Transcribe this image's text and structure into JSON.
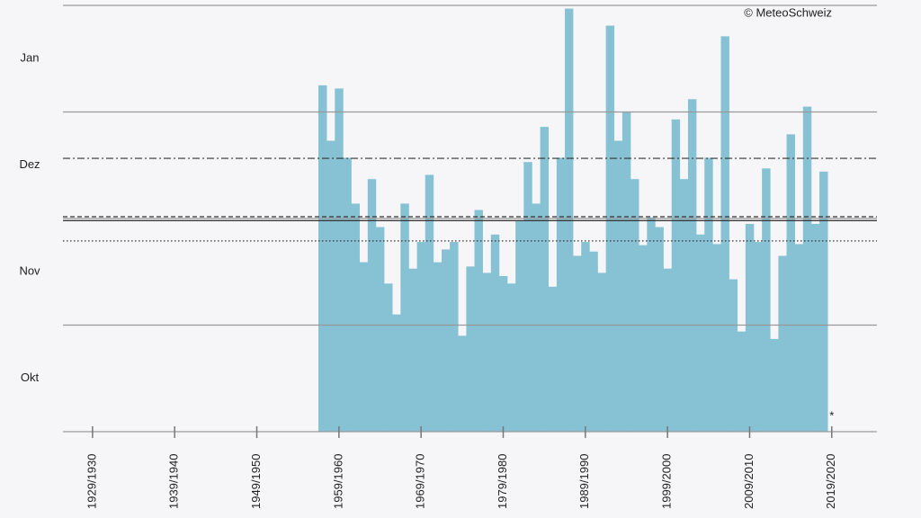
{
  "chart_data": {
    "type": "bar",
    "annotations": [
      "© MeteoSchweiz",
      "*"
    ],
    "x": [
      1957,
      1958,
      1959,
      1960,
      1961,
      1962,
      1963,
      1964,
      1965,
      1966,
      1967,
      1968,
      1969,
      1970,
      1971,
      1972,
      1973,
      1974,
      1975,
      1976,
      1977,
      1978,
      1979,
      1980,
      1981,
      1982,
      1983,
      1984,
      1985,
      1986,
      1987,
      1988,
      1989,
      1990,
      1991,
      1992,
      1993,
      1994,
      1995,
      1996,
      1997,
      1998,
      1999,
      2000,
      2001,
      2002,
      2003,
      2004,
      2005,
      2006,
      2007,
      2008,
      2009,
      2010,
      2011,
      2012,
      2013,
      2014,
      2015,
      2016,
      2017,
      2018
    ],
    "values": [
      3.25,
      2.73,
      3.22,
      2.57,
      2.14,
      1.59,
      2.37,
      1.92,
      1.39,
      1.1,
      2.14,
      1.53,
      1.78,
      2.41,
      1.59,
      1.71,
      1.78,
      0.9,
      1.55,
      2.08,
      1.49,
      1.85,
      1.46,
      1.39,
      1.98,
      2.53,
      2.14,
      2.86,
      1.36,
      2.57,
      3.97,
      1.65,
      1.78,
      1.69,
      1.49,
      3.81,
      2.73,
      3.0,
      2.37,
      1.75,
      2.01,
      1.92,
      1.53,
      2.93,
      2.37,
      3.12,
      1.85,
      2.57,
      1.76,
      3.71,
      1.43,
      0.94,
      1.95,
      1.78,
      2.47,
      0.87,
      1.65,
      2.79,
      1.76,
      3.05,
      1.95,
      2.44
    ],
    "color": "#86c2d4",
    "xlim": [
      1925.4,
      2024.5
    ],
    "xticks": [
      {
        "value": 1929,
        "label": "1929/1930"
      },
      {
        "value": 1939,
        "label": "1939/1940"
      },
      {
        "value": 1949,
        "label": "1949/1950"
      },
      {
        "value": 1959,
        "label": "1959/1960"
      },
      {
        "value": 1969,
        "label": "1969/1970"
      },
      {
        "value": 1979,
        "label": "1979/1980"
      },
      {
        "value": 1989,
        "label": "1989/1990"
      },
      {
        "value": 1999,
        "label": "1999/2000"
      },
      {
        "value": 2009,
        "label": "2009/2010"
      },
      {
        "value": 2019,
        "label": "2019/2020"
      }
    ],
    "ylim": [
      0,
      4
    ],
    "yticks": [
      {
        "value": 0.5,
        "label": "Okt"
      },
      {
        "value": 1.5,
        "label": "Nov"
      },
      {
        "value": 2.5,
        "label": "Dez"
      },
      {
        "value": 3.5,
        "label": "Jan"
      }
    ],
    "grid_lines": [
      0,
      1,
      2,
      3,
      4
    ],
    "reference_lines": [
      {
        "value": 2.565,
        "style": "dashdot"
      },
      {
        "value": 2.017,
        "style": "dashed"
      },
      {
        "value": 1.98,
        "style": "solid"
      },
      {
        "value": 1.79,
        "style": "dotted"
      }
    ]
  }
}
